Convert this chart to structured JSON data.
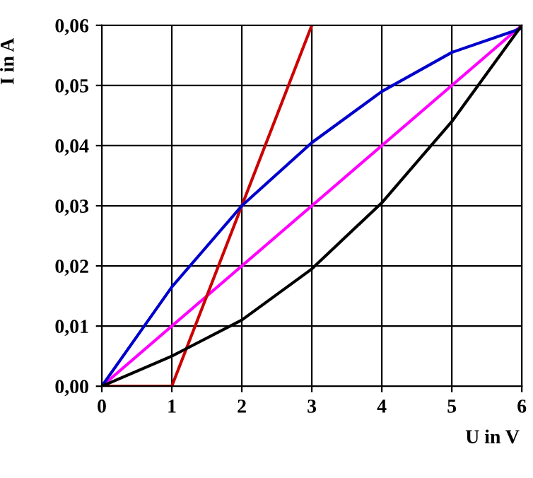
{
  "chart_data": {
    "type": "line",
    "xlabel": "U in V",
    "ylabel": "I in A",
    "xlim": [
      0,
      6
    ],
    "ylim": [
      0,
      0.06
    ],
    "xticks": [
      0,
      1,
      2,
      3,
      4,
      5,
      6
    ],
    "yticks": [
      {
        "value": 0,
        "label": "0,00"
      },
      {
        "value": 0.01,
        "label": "0,01"
      },
      {
        "value": 0.02,
        "label": "0,02"
      },
      {
        "value": 0.03,
        "label": "0,03"
      },
      {
        "value": 0.04,
        "label": "0,04"
      },
      {
        "value": 0.05,
        "label": "0,05"
      },
      {
        "value": 0.06,
        "label": "0,06"
      }
    ],
    "grid": true,
    "marker": "none",
    "line_style": "solid",
    "series": [
      {
        "color": "#ff00ff",
        "x": [
          0,
          6
        ],
        "values": [
          0,
          0.06
        ]
      },
      {
        "color": "#cc0000",
        "x": [
          0,
          1,
          3
        ],
        "values": [
          0,
          0,
          0.06
        ]
      },
      {
        "color": "#0000cc",
        "x": [
          0,
          1,
          2,
          3,
          4,
          5,
          6
        ],
        "values": [
          0,
          0.0165,
          0.03,
          0.0405,
          0.049,
          0.0555,
          0.0595
        ]
      },
      {
        "color": "#000000",
        "x": [
          0,
          1,
          2,
          3,
          4,
          5,
          6
        ],
        "values": [
          0,
          0.005,
          0.011,
          0.0195,
          0.0305,
          0.044,
          0.06
        ]
      }
    ]
  }
}
